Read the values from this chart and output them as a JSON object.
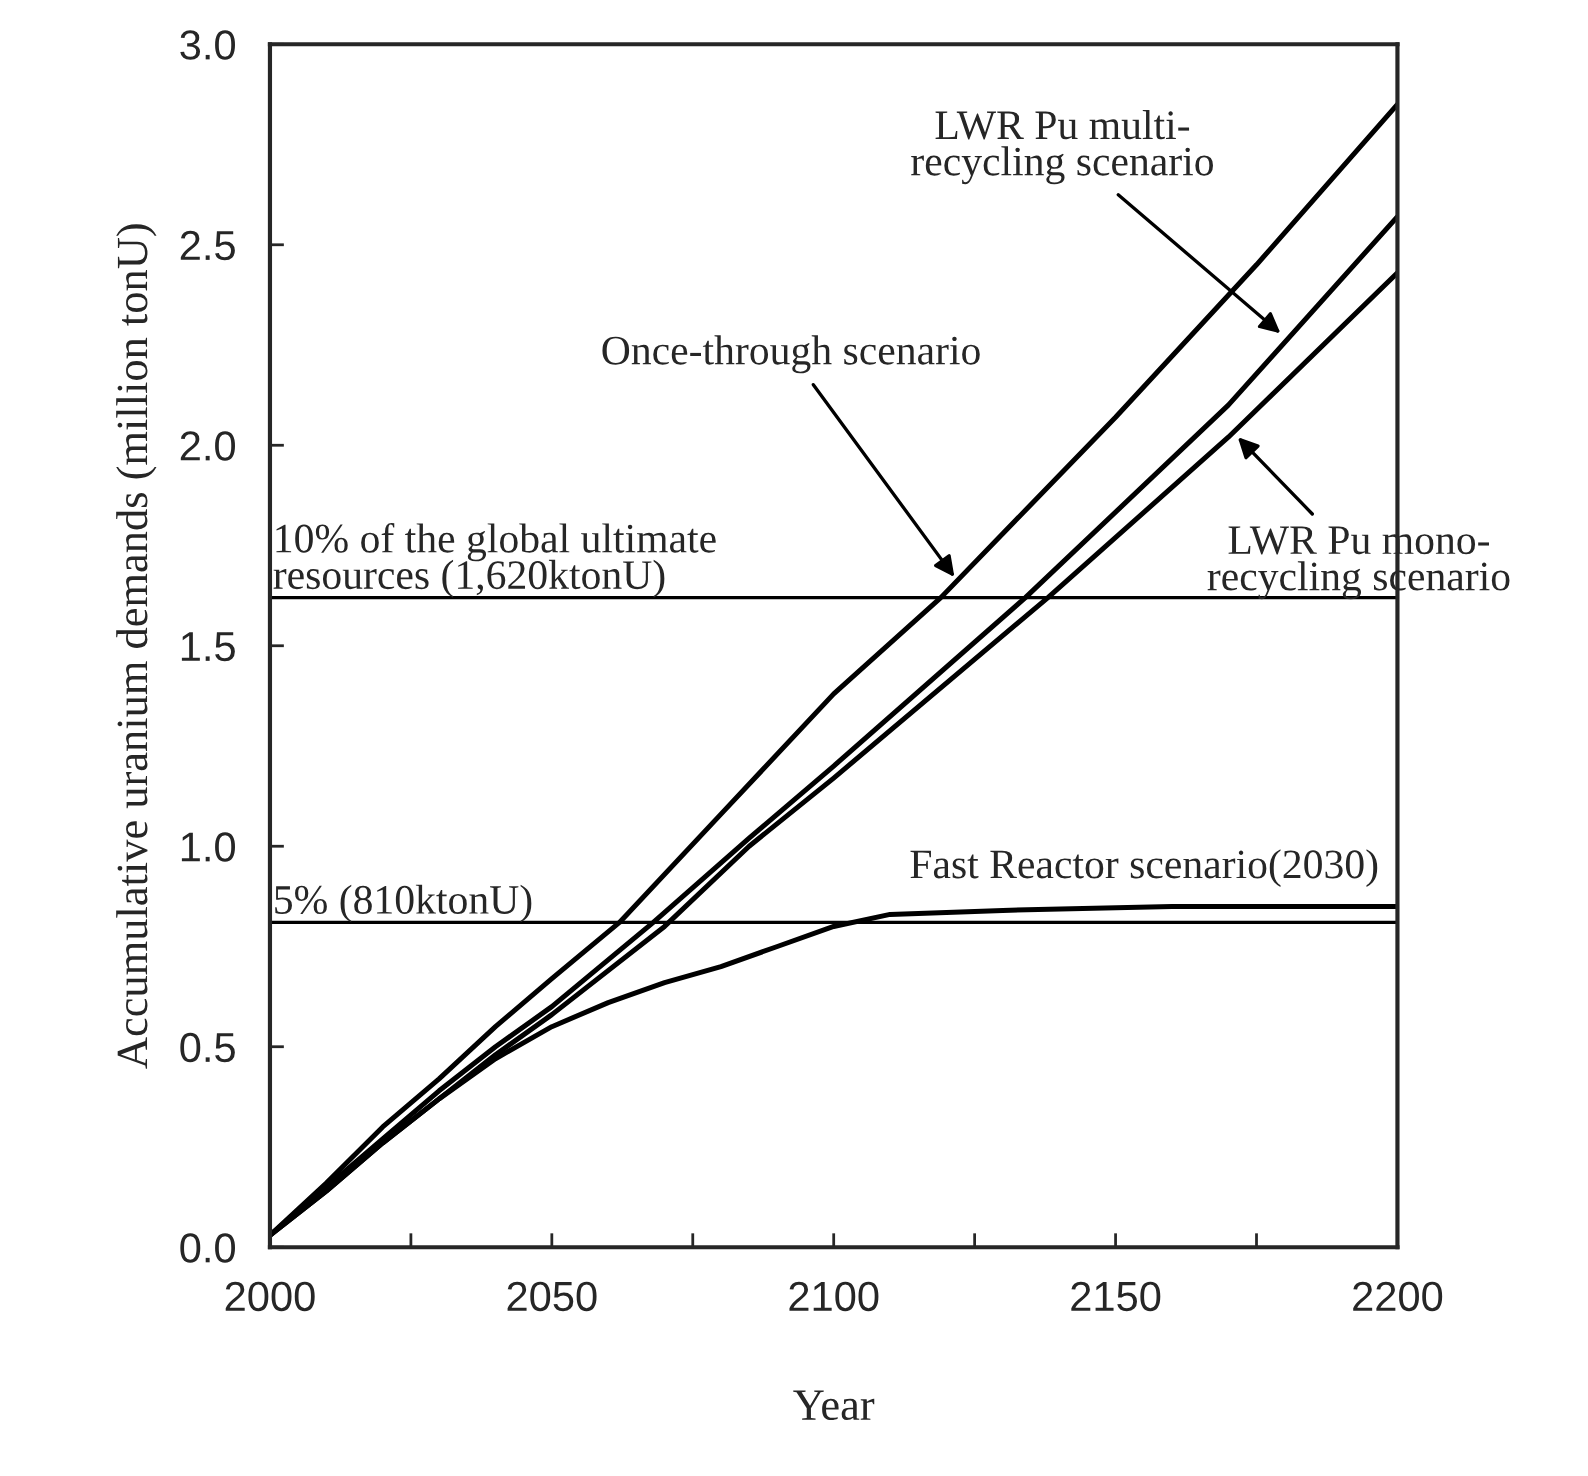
{
  "chart_data": {
    "type": "line",
    "xlabel": "Year",
    "ylabel": "Accumulative uranium demands (million tonU)",
    "xlim": [
      2000,
      2200
    ],
    "ylim": [
      0,
      3
    ],
    "xticks": [
      2000,
      {
        "value": 2025,
        "label": null
      },
      2050,
      {
        "value": 2075,
        "label": null
      },
      2100,
      {
        "value": 2125,
        "label": null
      },
      2150,
      {
        "value": 2175,
        "label": null
      },
      2200
    ],
    "yticks": [
      {
        "value": 0,
        "label": "0.0"
      },
      0.5,
      {
        "value": 1,
        "label": "1.0"
      },
      1.5,
      {
        "value": 2,
        "label": "2.0"
      },
      2.5,
      {
        "value": 3,
        "label": "3.0"
      }
    ],
    "grid": false,
    "legend": false,
    "marker": "none",
    "line_style": "solid",
    "series": [
      {
        "color": "#000000",
        "x": [
          2000,
          2010,
          2020,
          2030,
          2040,
          2050,
          2062,
          2080,
          2100,
          2119,
          2150,
          2175,
          2200
        ],
        "values": [
          0.03,
          0.16,
          0.3,
          0.42,
          0.55,
          0.67,
          0.81,
          1.08,
          1.38,
          1.62,
          2.07,
          2.45,
          2.85
        ]
      },
      {
        "color": "#000000",
        "x": [
          2000,
          2010,
          2020,
          2030,
          2040,
          2050,
          2068,
          2085,
          2100,
          2134,
          2170,
          2200
        ],
        "values": [
          0.03,
          0.15,
          0.27,
          0.39,
          0.5,
          0.6,
          0.81,
          1.02,
          1.2,
          1.62,
          2.1,
          2.57
        ]
      },
      {
        "color": "#000000",
        "x": [
          2000,
          2010,
          2020,
          2030,
          2040,
          2050,
          2070,
          2085,
          2100,
          2138,
          2170,
          2200
        ],
        "values": [
          0.03,
          0.14,
          0.26,
          0.37,
          0.48,
          0.58,
          0.8,
          1.0,
          1.17,
          1.62,
          2.02,
          2.43
        ]
      },
      {
        "color": "#000000",
        "x": [
          2000,
          2010,
          2020,
          2030,
          2040,
          2050,
          2060,
          2070,
          2080,
          2090,
          2100,
          2110,
          2130,
          2160,
          2200
        ],
        "values": [
          0.03,
          0.14,
          0.26,
          0.37,
          0.47,
          0.55,
          0.61,
          0.66,
          0.7,
          0.75,
          0.8,
          0.83,
          0.84,
          0.85,
          0.85
        ]
      }
    ],
    "ref_lines": [
      {
        "axis": "y",
        "value": 1.62,
        "label": "10% of the global ultimate\nresources (1,620ktonU)",
        "color": "#000000"
      },
      {
        "axis": "y",
        "value": 0.81,
        "label": "5% (810ktonU)",
        "color": "#000000"
      }
    ],
    "annotations": [
      {
        "text": "Once-through scenario",
        "x": 2122,
        "y": 1.66
      },
      {
        "text": "LWR Pu multi-\nrecycling scenario",
        "x": 2180,
        "y": 2.27
      },
      {
        "text": "LWR Pu mono-\nrecycling scenario",
        "x": 2171,
        "y": 2.03
      },
      {
        "text": "Fast Reactor scenario(2030)",
        "x": 2160,
        "y": 0.85
      }
    ]
  }
}
